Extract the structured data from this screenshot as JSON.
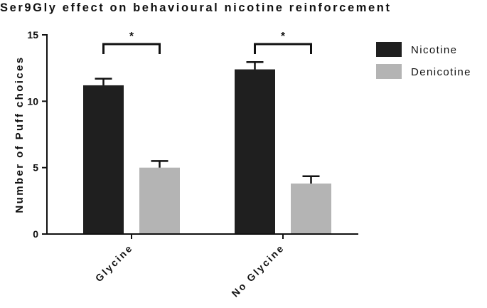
{
  "chart_data": {
    "type": "bar",
    "title": "Ser9Gly effect on behavioural nicotine reinforcement",
    "xlabel": "",
    "ylabel": "Number of Puff choices",
    "ylim": [
      0,
      15
    ],
    "yticks": [
      0,
      5,
      10,
      15
    ],
    "categories": [
      "Glycine",
      "No Glycine"
    ],
    "series": [
      {
        "name": "Nicotine",
        "color": "#1f1f1f",
        "values": [
          11.2,
          12.4
        ],
        "errors": [
          0.5,
          0.55
        ]
      },
      {
        "name": "Denicotine",
        "color": "#b4b4b4",
        "values": [
          5.0,
          3.8
        ],
        "errors": [
          0.5,
          0.55
        ]
      }
    ],
    "significance": [
      {
        "category_index": 0,
        "label": "*"
      },
      {
        "category_index": 1,
        "label": "*"
      }
    ],
    "error_bars": true,
    "grid": false,
    "legend_position": "top-right"
  }
}
